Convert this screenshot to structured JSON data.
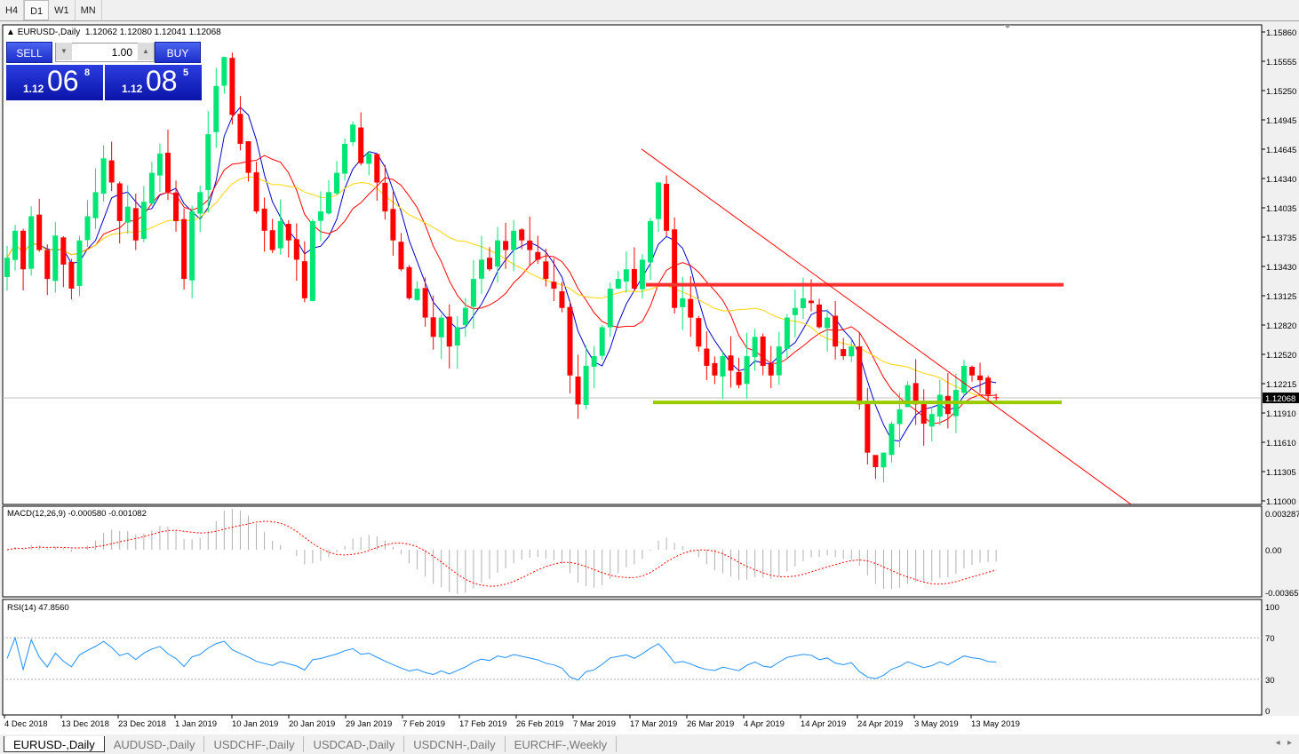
{
  "timeframes": [
    "H4",
    "D1",
    "W1",
    "MN"
  ],
  "active_timeframe": "D1",
  "header": {
    "symbol": "EURUSD-,Daily",
    "ohlc": "1.12062 1.12080 1.12041 1.12068"
  },
  "trade_panel": {
    "sell_label": "SELL",
    "buy_label": "BUY",
    "lots": "1.00",
    "sell": {
      "small": "1.12",
      "big": "06",
      "sup": "8"
    },
    "buy": {
      "small": "1.12",
      "big": "08",
      "sup": "5"
    }
  },
  "price_axis": [
    "1.15860",
    "1.15555",
    "1.15250",
    "1.14945",
    "1.14645",
    "1.14340",
    "1.14035",
    "1.13735",
    "1.13430",
    "1.13125",
    "1.12820",
    "1.12520",
    "1.12215",
    "1.11910",
    "1.11610",
    "1.11305",
    "1.11000"
  ],
  "current_price": "1.12068",
  "closes": [
    1.1352,
    1.138,
    1.134,
    1.1395,
    1.136,
    1.133,
    1.1375,
    1.1345,
    1.132,
    1.137,
    1.1395,
    1.142,
    1.1455,
    1.143,
    1.139,
    1.1405,
    1.137,
    1.141,
    1.144,
    1.146,
    1.142,
    1.139,
    1.133,
    1.14,
    1.142,
    1.148,
    1.153,
    1.156,
    1.15,
    1.147,
    1.144,
    1.14,
    1.138,
    1.136,
    1.139,
    1.137,
    1.135,
    1.131,
    1.139,
    1.14,
    1.142,
    1.144,
    1.147,
    1.149,
    1.145,
    1.146,
    1.143,
    1.14,
    1.137,
    1.134,
    1.131,
    1.132,
    1.129,
    1.127,
    1.129,
    1.126,
    1.128,
    1.13,
    1.133,
    1.135,
    1.134,
    1.137,
    1.136,
    1.138,
    1.137,
    1.136,
    1.135,
    1.133,
    1.132,
    1.13,
    1.123,
    1.12,
    1.124,
    1.125,
    1.128,
    1.132,
    1.133,
    1.134,
    1.132,
    1.135,
    1.139,
    1.143,
    1.138,
    1.13,
    1.131,
    1.129,
    1.126,
    1.124,
    1.123,
    1.125,
    1.1235,
    1.122,
    1.125,
    1.127,
    1.124,
    1.123,
    1.126,
    1.129,
    1.13,
    1.131,
    1.1305,
    1.128,
    1.129,
    1.126,
    1.125,
    1.126,
    1.12,
    1.115,
    1.1135,
    1.115,
    1.118,
    1.1195,
    1.122,
    1.12,
    1.118,
    1.119,
    1.121,
    1.119,
    1.1215,
    1.124,
    1.123,
    1.1225,
    1.121,
    1.1207
  ],
  "levels": {
    "resistance": 1.1324,
    "support": 1.1202,
    "trendline": [
      [
        80,
        1.1458
      ],
      [
        121,
        1.121
      ]
    ]
  },
  "colors": {
    "bull": "#00e676",
    "bear": "#ff0000",
    "resistance": "#ff3030",
    "support": "#99cc00",
    "ma_fast": "#0000cc",
    "ma_mid": "#ff0000",
    "ma_slow": "#ffd700",
    "rsi": "#1e90ff"
  },
  "macd": {
    "label": "MACD(12,26,9) -0.000580 -0.001082",
    "axis": [
      "0.003287",
      "0.00",
      "-0.003659"
    ]
  },
  "rsi": {
    "label": "RSI(14) 47.8560",
    "axis": [
      "100",
      "70",
      "30",
      "0"
    ]
  },
  "dates": [
    "4 Dec 2018",
    "13 Dec 2018",
    "23 Dec 2018",
    "1 Jan 2019",
    "10 Jan 2019",
    "20 Jan 2019",
    "29 Jan 2019",
    "7 Feb 2019",
    "17 Feb 2019",
    "26 Feb 2019",
    "7 Mar 2019",
    "17 Mar 2019",
    "26 Mar 2019",
    "4 Apr 2019",
    "14 Apr 2019",
    "24 Apr 2019",
    "3 May 2019",
    "13 May 2019"
  ],
  "tabs": [
    "EURUSD-,Daily",
    "AUDUSD-,Daily",
    "USDCHF-,Daily",
    "USDCAD-,Daily",
    "USDCNH-,Daily",
    "EURCHF-,Weekly"
  ]
}
